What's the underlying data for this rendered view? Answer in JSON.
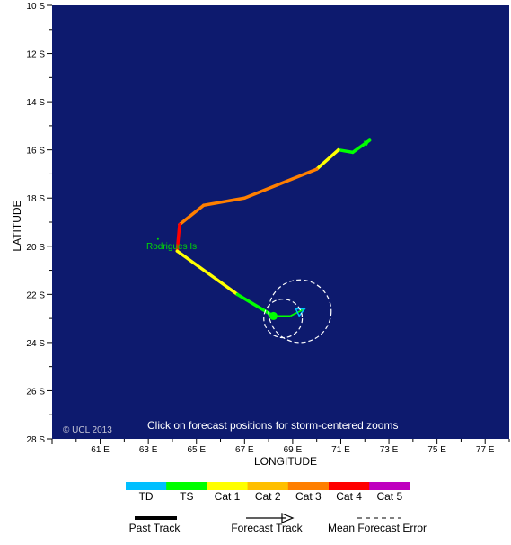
{
  "map": {
    "background_color": "#0d1a6e",
    "lat_ticks": [
      {
        "value": 10,
        "label": "10 S"
      },
      {
        "value": 12,
        "label": "12 S"
      },
      {
        "value": 14,
        "label": "14 S"
      },
      {
        "value": 16,
        "label": "16 S"
      },
      {
        "value": 18,
        "label": "18 S"
      },
      {
        "value": 20,
        "label": "20 S"
      },
      {
        "value": 22,
        "label": "22 S"
      },
      {
        "value": 24,
        "label": "24 S"
      },
      {
        "value": 26,
        "label": "26 S"
      },
      {
        "value": 28,
        "label": "28 S"
      }
    ],
    "lon_ticks": [
      {
        "value": 61,
        "label": "61 E"
      },
      {
        "value": 63,
        "label": "63 E"
      },
      {
        "value": 65,
        "label": "65 E"
      },
      {
        "value": 67,
        "label": "67 E"
      },
      {
        "value": 69,
        "label": "69 E"
      },
      {
        "value": 71,
        "label": "71 E"
      },
      {
        "value": 73,
        "label": "73 E"
      },
      {
        "value": 75,
        "label": "75 E"
      },
      {
        "value": 77,
        "label": "77 E"
      }
    ],
    "lat_range": [
      10,
      28
    ],
    "lon_range": [
      59,
      78
    ],
    "xlabel": "LONGITUDE",
    "ylabel": "LATITUDE",
    "island_label": "Rodrigues Is.",
    "island": {
      "lon": 63.4,
      "lat": 19.7
    },
    "instruction_text": "Click on forecast positions for storm-centered zooms",
    "copyright": "© UCL 2013"
  },
  "past_track": [
    {
      "lon": 72.2,
      "lat": 15.6,
      "cat": "TS"
    },
    {
      "lon": 71.5,
      "lat": 16.1,
      "cat": "TS"
    },
    {
      "lon": 70.9,
      "lat": 16.0,
      "cat": "TS"
    },
    {
      "lon": 70.0,
      "lat": 16.8,
      "cat": "Cat 1"
    },
    {
      "lon": 67.0,
      "lat": 18.0,
      "cat": "Cat 3"
    },
    {
      "lon": 65.3,
      "lat": 18.3,
      "cat": "Cat 3"
    },
    {
      "lon": 64.3,
      "lat": 19.1,
      "cat": "Cat 3"
    },
    {
      "lon": 64.2,
      "lat": 20.2,
      "cat": "Cat 4"
    },
    {
      "lon": 66.7,
      "lat": 22.0,
      "cat": "Cat 1"
    },
    {
      "lon": 68.2,
      "lat": 22.9,
      "cat": "TS"
    }
  ],
  "forecast_track": [
    {
      "lon": 68.2,
      "lat": 22.9,
      "cat": "TS"
    },
    {
      "lon": 68.9,
      "lat": 22.9,
      "cat": "TS"
    },
    {
      "lon": 69.5,
      "lat": 22.6,
      "cat": "TD"
    }
  ],
  "forecast_error_circles": [
    {
      "lon": 68.6,
      "lat": 23.0,
      "radius_deg": 0.8
    },
    {
      "lon": 69.3,
      "lat": 22.7,
      "radius_deg": 1.3
    }
  ],
  "legend": {
    "categories": [
      {
        "label": "TD",
        "color": "#00bfff"
      },
      {
        "label": "TS",
        "color": "#00ff00"
      },
      {
        "label": "Cat 1",
        "color": "#ffff00"
      },
      {
        "label": "Cat 2",
        "color": "#ffbf00"
      },
      {
        "label": "Cat 3",
        "color": "#ff7f00"
      },
      {
        "label": "Cat 4",
        "color": "#ff0000"
      },
      {
        "label": "Cat 5",
        "color": "#bf00bf"
      }
    ],
    "past_track_label": "Past Track",
    "forecast_track_label": "Forecast Track",
    "error_label": "Mean Forecast Error"
  }
}
